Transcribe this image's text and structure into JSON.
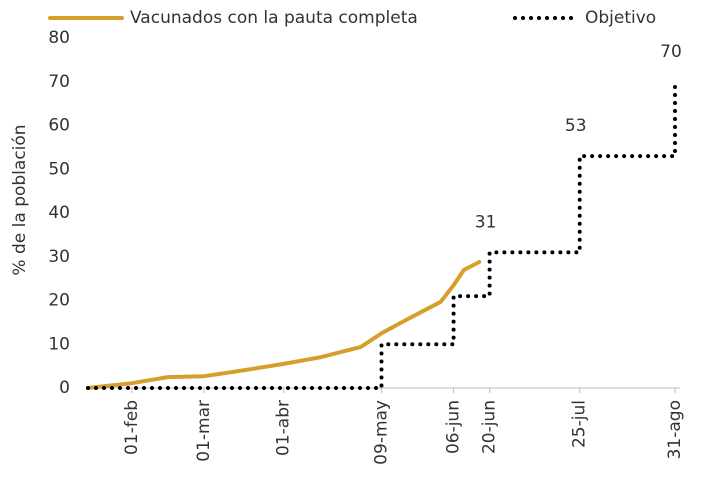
{
  "chart_data": {
    "type": "line",
    "y_label": "% de la población",
    "series": [
      {
        "name": "Vacunados con la pauta completa",
        "color": "#d4a02a",
        "style": "solid",
        "x": [
          "15-ene",
          "01-feb",
          "15-feb",
          "01-mar",
          "15-mar",
          "01-abr",
          "15-abr",
          "01-may",
          "09-may",
          "20-may",
          "01-jun",
          "06-jun",
          "10-jun",
          "16-jun"
        ],
        "values": [
          0,
          1.1,
          2.5,
          2.7,
          3.9,
          5.5,
          7,
          9.4,
          12.5,
          16,
          19.7,
          23.5,
          27,
          28.8
        ]
      },
      {
        "name": "Objetivo",
        "color": "#000000",
        "style": "dotted",
        "x": [
          "15-ene",
          "09-may",
          "09-may",
          "06-jun",
          "06-jun",
          "20-jun",
          "20-jun",
          "25-jul",
          "25-jul",
          "31-ago",
          "31-ago"
        ],
        "values": [
          0,
          0,
          10,
          10,
          21,
          21,
          31,
          31,
          53,
          53,
          70
        ],
        "value_labels": [
          null,
          null,
          null,
          null,
          null,
          null,
          "31",
          null,
          "53",
          null,
          "70"
        ]
      }
    ],
    "xlim": [
      "15-ene",
      "31-ago"
    ],
    "xticks": [
      "01-feb",
      "01-mar",
      "01-abr",
      "09-may",
      "06-jun",
      "20-jun",
      "25-jul",
      "31-ago"
    ],
    "ylim": [
      0,
      80
    ],
    "yticks": [
      0,
      10,
      20,
      30,
      40,
      50,
      60,
      70,
      80
    ],
    "grid": false,
    "legend": "top"
  }
}
